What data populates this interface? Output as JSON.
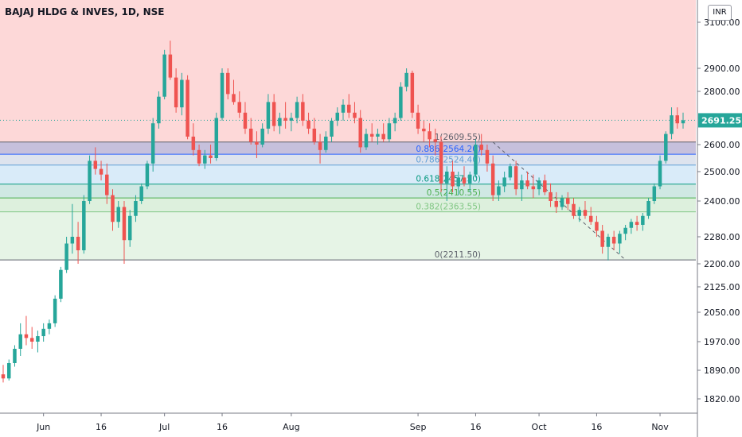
{
  "header": {
    "title": "BAJAJ HLDG & INVES, 1D, NSE",
    "currency": "INR"
  },
  "chart_data": {
    "type": "candlestick",
    "symbol": "BAJAJ HLDG & INVES",
    "interval": "1D",
    "exchange": "NSE",
    "ylim": [
      1780,
      3130
    ],
    "y_ticks": [
      {
        "label": "3100.00",
        "value": 3100
      },
      {
        "label": "2900.00",
        "value": 2900
      },
      {
        "label": "2800.00",
        "value": 2800
      },
      {
        "label": "2691.25",
        "value": 2691.25
      },
      {
        "label": "2600.00",
        "value": 2600
      },
      {
        "label": "2500.00",
        "value": 2500
      },
      {
        "label": "2400.00",
        "value": 2400
      },
      {
        "label": "2280.00",
        "value": 2280
      },
      {
        "label": "2200.00",
        "value": 2200
      },
      {
        "label": "2125.00",
        "value": 2125
      },
      {
        "label": "2050.00",
        "value": 2050
      },
      {
        "label": "1970.00",
        "value": 1970
      },
      {
        "label": "1890.00",
        "value": 1890
      },
      {
        "label": "1820.00",
        "value": 1820
      }
    ],
    "x_ticks": [
      {
        "label": "Jun",
        "index": 7
      },
      {
        "label": "16",
        "index": 17
      },
      {
        "label": "Jul",
        "index": 28
      },
      {
        "label": "16",
        "index": 38
      },
      {
        "label": "Aug",
        "index": 50
      },
      {
        "label": "Sep",
        "index": 72
      },
      {
        "label": "16",
        "index": 82
      },
      {
        "label": "Oct",
        "index": 93
      },
      {
        "label": "16",
        "index": 103
      },
      {
        "label": "Nov",
        "index": 114
      }
    ],
    "last_price": {
      "label": "2691.25",
      "value": 2691.25
    },
    "fib_levels": [
      {
        "ratio": "1",
        "value": 2609.55,
        "label": "1(2609.55)",
        "color": "#5d606b"
      },
      {
        "ratio": "0.886",
        "value": 2564.2,
        "label": "0.886(2564.20)",
        "color": "#2962ff"
      },
      {
        "ratio": "0.786",
        "value": 2524.4,
        "label": "0.786(2524.40)",
        "color": "#5e9ed6"
      },
      {
        "ratio": "0.618",
        "value": 2457.5,
        "label": "0.618(2457.50)",
        "color": "#089981"
      },
      {
        "ratio": "0.5",
        "value": 2410.55,
        "label": "0.5(2410.55)",
        "color": "#4caf50"
      },
      {
        "ratio": "0.382",
        "value": 2363.55,
        "label": "0.382(2363.55)",
        "color": "#81c784"
      },
      {
        "ratio": "0",
        "value": 2211.5,
        "label": "0(2211.50)",
        "color": "#5d606b"
      }
    ],
    "candles": [
      [
        1880,
        1905,
        1860,
        1870
      ],
      [
        1870,
        1920,
        1865,
        1910
      ],
      [
        1910,
        1960,
        1900,
        1950
      ],
      [
        1950,
        2020,
        1930,
        1990
      ],
      [
        1990,
        2040,
        1960,
        1980
      ],
      [
        1980,
        2010,
        1950,
        1970
      ],
      [
        1970,
        2000,
        1940,
        1985
      ],
      [
        1985,
        2020,
        1970,
        2005
      ],
      [
        2005,
        2030,
        1990,
        2020
      ],
      [
        2020,
        2100,
        2010,
        2090
      ],
      [
        2090,
        2190,
        2080,
        2180
      ],
      [
        2180,
        2280,
        2170,
        2260
      ],
      [
        2260,
        2390,
        2230,
        2280
      ],
      [
        2280,
        2330,
        2200,
        2240
      ],
      [
        2240,
        2420,
        2230,
        2400
      ],
      [
        2400,
        2560,
        2390,
        2540
      ],
      [
        2540,
        2590,
        2490,
        2510
      ],
      [
        2510,
        2540,
        2470,
        2490
      ],
      [
        2490,
        2530,
        2390,
        2420
      ],
      [
        2420,
        2440,
        2300,
        2330
      ],
      [
        2330,
        2400,
        2310,
        2380
      ],
      [
        2380,
        2400,
        2200,
        2270
      ],
      [
        2270,
        2370,
        2250,
        2350
      ],
      [
        2350,
        2420,
        2330,
        2400
      ],
      [
        2400,
        2460,
        2390,
        2450
      ],
      [
        2450,
        2540,
        2440,
        2530
      ],
      [
        2530,
        2700,
        2500,
        2680
      ],
      [
        2680,
        2800,
        2660,
        2780
      ],
      [
        2780,
        2980,
        2770,
        2960
      ],
      [
        2960,
        3020,
        2850,
        2860
      ],
      [
        2860,
        2900,
        2720,
        2740
      ],
      [
        2740,
        2880,
        2710,
        2850
      ],
      [
        2850,
        2870,
        2620,
        2630
      ],
      [
        2630,
        2680,
        2560,
        2580
      ],
      [
        2580,
        2600,
        2520,
        2530
      ],
      [
        2530,
        2580,
        2510,
        2560
      ],
      [
        2560,
        2600,
        2530,
        2550
      ],
      [
        2550,
        2720,
        2540,
        2700
      ],
      [
        2700,
        2900,
        2690,
        2880
      ],
      [
        2880,
        2900,
        2770,
        2790
      ],
      [
        2790,
        2850,
        2750,
        2760
      ],
      [
        2760,
        2800,
        2700,
        2720
      ],
      [
        2720,
        2760,
        2640,
        2660
      ],
      [
        2660,
        2700,
        2600,
        2610
      ],
      [
        2610,
        2650,
        2550,
        2600
      ],
      [
        2600,
        2680,
        2590,
        2660
      ],
      [
        2660,
        2790,
        2640,
        2760
      ],
      [
        2760,
        2790,
        2650,
        2670
      ],
      [
        2670,
        2720,
        2640,
        2700
      ],
      [
        2700,
        2760,
        2660,
        2690
      ],
      [
        2690,
        2720,
        2650,
        2700
      ],
      [
        2700,
        2780,
        2680,
        2760
      ],
      [
        2760,
        2790,
        2670,
        2690
      ],
      [
        2690,
        2720,
        2640,
        2660
      ],
      [
        2660,
        2700,
        2600,
        2610
      ],
      [
        2610,
        2640,
        2530,
        2580
      ],
      [
        2580,
        2650,
        2570,
        2630
      ],
      [
        2630,
        2700,
        2610,
        2690
      ],
      [
        2690,
        2740,
        2670,
        2720
      ],
      [
        2720,
        2770,
        2690,
        2750
      ],
      [
        2750,
        2790,
        2700,
        2720
      ],
      [
        2720,
        2760,
        2680,
        2700
      ],
      [
        2700,
        2730,
        2570,
        2590
      ],
      [
        2590,
        2660,
        2580,
        2640
      ],
      [
        2640,
        2680,
        2610,
        2630
      ],
      [
        2630,
        2660,
        2600,
        2640
      ],
      [
        2640,
        2680,
        2610,
        2620
      ],
      [
        2620,
        2700,
        2610,
        2680
      ],
      [
        2680,
        2720,
        2650,
        2700
      ],
      [
        2700,
        2840,
        2690,
        2820
      ],
      [
        2820,
        2900,
        2800,
        2880
      ],
      [
        2880,
        2890,
        2700,
        2720
      ],
      [
        2720,
        2750,
        2640,
        2660
      ],
      [
        2660,
        2690,
        2610,
        2650
      ],
      [
        2650,
        2680,
        2590,
        2620
      ],
      [
        2620,
        2660,
        2560,
        2610
      ],
      [
        2610,
        2630,
        2430,
        2460
      ],
      [
        2460,
        2520,
        2400,
        2500
      ],
      [
        2500,
        2540,
        2430,
        2450
      ],
      [
        2450,
        2500,
        2420,
        2480
      ],
      [
        2480,
        2520,
        2450,
        2460
      ],
      [
        2460,
        2500,
        2430,
        2490
      ],
      [
        2490,
        2620,
        2480,
        2600
      ],
      [
        2600,
        2640,
        2560,
        2580
      ],
      [
        2580,
        2600,
        2500,
        2530
      ],
      [
        2530,
        2560,
        2400,
        2420
      ],
      [
        2420,
        2470,
        2400,
        2450
      ],
      [
        2450,
        2500,
        2430,
        2480
      ],
      [
        2480,
        2530,
        2470,
        2520
      ],
      [
        2520,
        2540,
        2420,
        2440
      ],
      [
        2440,
        2490,
        2400,
        2470
      ],
      [
        2470,
        2500,
        2440,
        2450
      ],
      [
        2450,
        2490,
        2410,
        2440
      ],
      [
        2440,
        2480,
        2420,
        2470
      ],
      [
        2470,
        2490,
        2420,
        2430
      ],
      [
        2430,
        2460,
        2380,
        2400
      ],
      [
        2400,
        2430,
        2360,
        2380
      ],
      [
        2380,
        2420,
        2370,
        2410
      ],
      [
        2410,
        2430,
        2370,
        2390
      ],
      [
        2390,
        2410,
        2340,
        2350
      ],
      [
        2350,
        2380,
        2330,
        2370
      ],
      [
        2370,
        2400,
        2340,
        2350
      ],
      [
        2350,
        2380,
        2320,
        2330
      ],
      [
        2330,
        2350,
        2280,
        2300
      ],
      [
        2300,
        2320,
        2230,
        2250
      ],
      [
        2250,
        2290,
        2210,
        2280
      ],
      [
        2280,
        2300,
        2240,
        2260
      ],
      [
        2260,
        2300,
        2230,
        2290
      ],
      [
        2290,
        2320,
        2270,
        2310
      ],
      [
        2310,
        2340,
        2290,
        2330
      ],
      [
        2330,
        2350,
        2300,
        2320
      ],
      [
        2320,
        2360,
        2300,
        2350
      ],
      [
        2350,
        2410,
        2340,
        2400
      ],
      [
        2400,
        2460,
        2390,
        2450
      ],
      [
        2450,
        2560,
        2440,
        2540
      ],
      [
        2540,
        2650,
        2530,
        2640
      ],
      [
        2640,
        2740,
        2620,
        2710
      ],
      [
        2710,
        2740,
        2660,
        2680
      ],
      [
        2680,
        2720,
        2660,
        2691.25
      ]
    ],
    "legend": "none",
    "grid": false
  }
}
